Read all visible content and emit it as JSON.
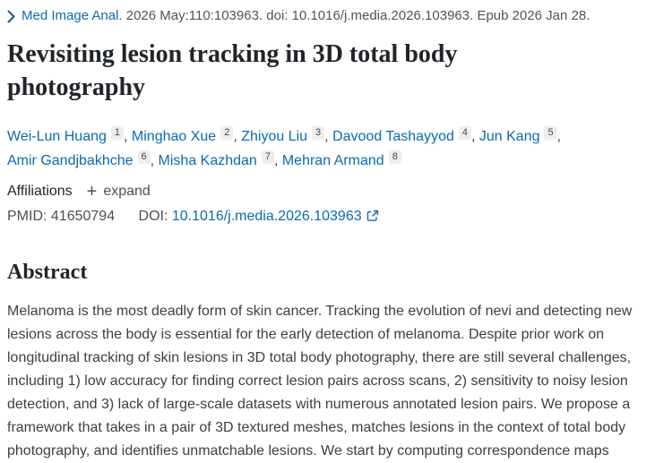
{
  "citation": {
    "journal": "Med Image Anal.",
    "rest": "2026 May:110:103963. doi: 10.1016/j.media.2026.103963. Epub 2026 Jan 28."
  },
  "title": "Revisiting lesion tracking in 3D total body photography",
  "authors": {
    "list": [
      {
        "name": "Wei-Lun Huang",
        "aff": "1"
      },
      {
        "name": "Minghao Xue",
        "aff": "2"
      },
      {
        "name": "Zhiyou Liu",
        "aff": "3"
      },
      {
        "name": "Davood Tashayyod",
        "aff": "4"
      },
      {
        "name": "Jun Kang",
        "aff": "5"
      },
      {
        "name": "Amir Gandjbakhche",
        "aff": "6"
      },
      {
        "name": "Misha Kazhdan",
        "aff": "7"
      },
      {
        "name": "Mehran Armand",
        "aff": "8"
      }
    ],
    "separator": ", "
  },
  "affiliations": {
    "label": "Affiliations",
    "expand_label": "expand"
  },
  "icons": {
    "plus": "+",
    "chevron_color": "#20558a",
    "link_color": "#0b6bab"
  },
  "ids": {
    "pmid_label": "PMID:",
    "pmid": "41650794",
    "doi_label": "DOI:",
    "doi": "10.1016/j.media.2026.103963"
  },
  "abstract": {
    "heading": "Abstract",
    "text": "Melanoma is the most deadly form of skin cancer. Tracking the evolution of nevi and detecting new lesions across the body is essential for the early detection of melanoma. Despite prior work on longitudinal tracking of skin lesions in 3D total body photography, there are still several challenges, including 1) low accuracy for finding correct lesion pairs across scans, 2) sensitivity to noisy lesion detection, and 3) lack of large-scale datasets with numerous annotated lesion pairs. We propose a framework that takes in a pair of 3D textured meshes, matches lesions in the context of total body photography, and identifies unmatchable lesions. We start by computing correspondence maps"
  }
}
